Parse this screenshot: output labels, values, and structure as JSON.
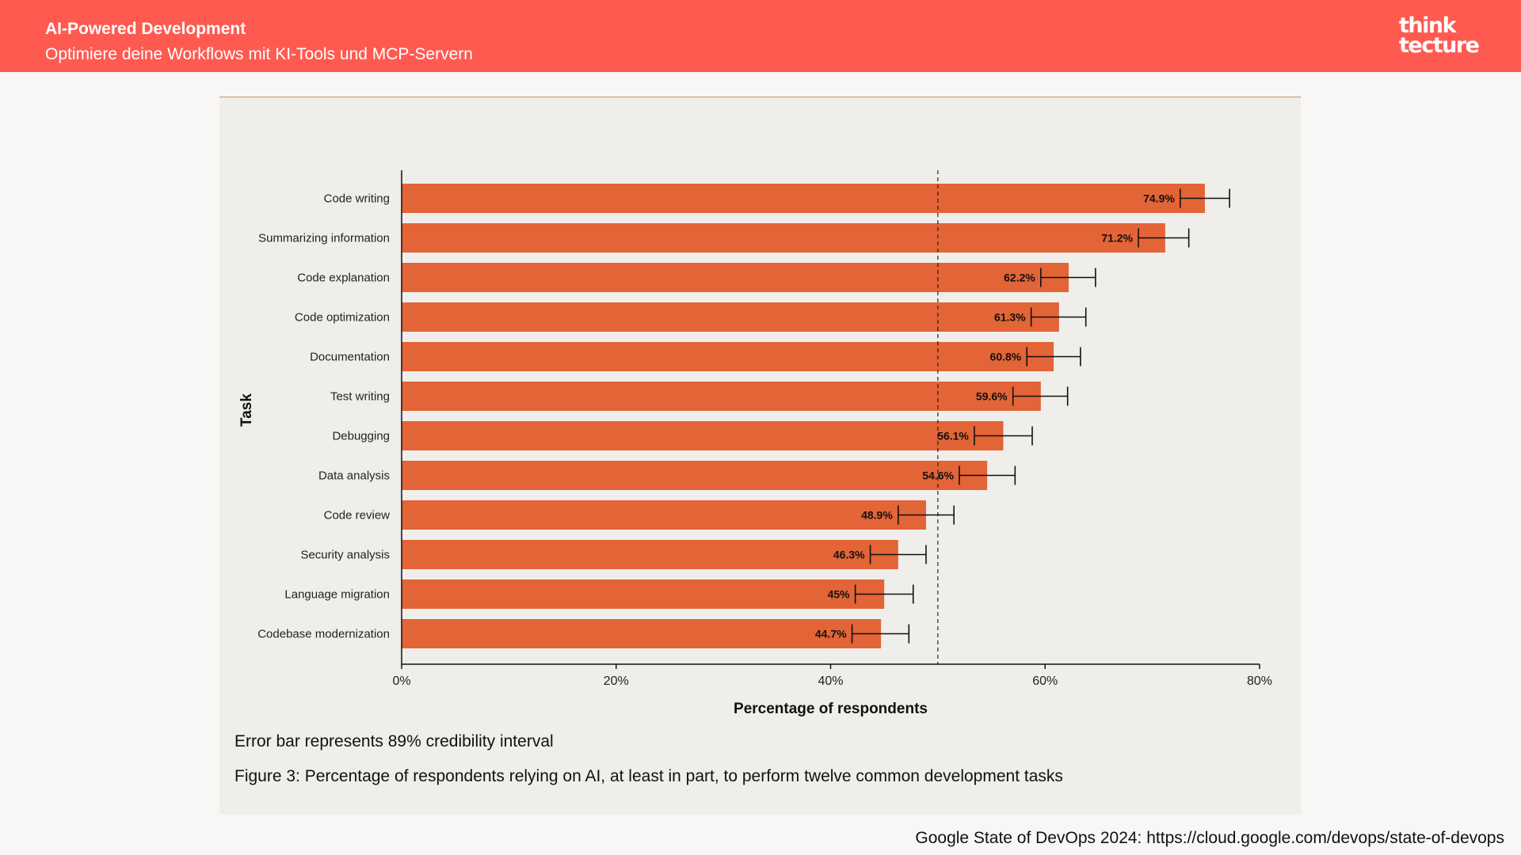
{
  "header": {
    "title": "AI-Powered Development",
    "subtitle": "Optimiere deine Workflows mit KI-Tools und MCP-Servern",
    "logo_line1": "think",
    "logo_line2": "tecture"
  },
  "colors": {
    "header_bg": "#ff5a50",
    "bar": "#e36436",
    "panel_bg": "#efeeeb"
  },
  "chart_data": {
    "type": "bar",
    "orientation": "horizontal",
    "categories": [
      "Code writing",
      "Summarizing information",
      "Code explanation",
      "Code optimization",
      "Documentation",
      "Test writing",
      "Debugging",
      "Data analysis",
      "Code review",
      "Security analysis",
      "Language migration",
      "Codebase modernization"
    ],
    "values": [
      74.9,
      71.2,
      62.2,
      61.3,
      60.8,
      59.6,
      56.1,
      54.6,
      48.9,
      46.3,
      45,
      44.7
    ],
    "value_labels": [
      "74.9%",
      "71.2%",
      "62.2%",
      "61.3%",
      "60.8%",
      "59.6%",
      "56.1%",
      "54.6%",
      "48.9%",
      "46.3%",
      "45%",
      "44.7%"
    ],
    "error_low": [
      72.6,
      68.7,
      59.6,
      58.7,
      58.3,
      57.0,
      53.4,
      52.0,
      46.3,
      43.7,
      42.3,
      42.0
    ],
    "error_high": [
      77.2,
      73.4,
      64.7,
      63.8,
      63.3,
      62.1,
      58.8,
      57.2,
      51.5,
      48.9,
      47.7,
      47.3
    ],
    "reference_line": 50,
    "xlim": [
      0,
      80
    ],
    "xticks": [
      0,
      20,
      40,
      60,
      80
    ],
    "xtick_labels": [
      "0%",
      "20%",
      "40%",
      "60%",
      "80%"
    ],
    "xlabel": "Percentage of respondents",
    "ylabel": "Task"
  },
  "note": "Error bar represents 89% credibility interval",
  "caption": "Figure 3: Percentage of respondents relying on AI, at least in part, to perform twelve common development tasks",
  "source": "Google State of DevOps 2024: https://cloud.google.com/devops/state-of-devops"
}
